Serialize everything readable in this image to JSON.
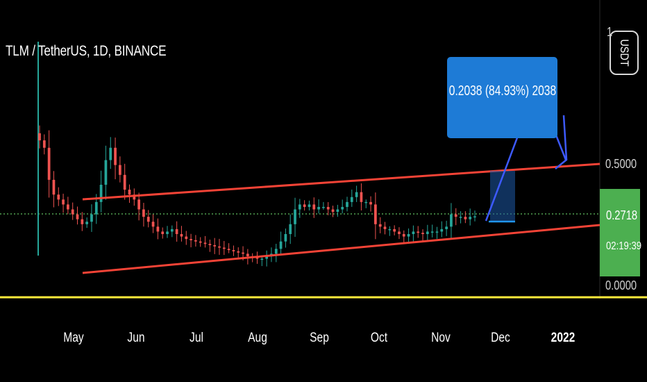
{
  "chart": {
    "symbol": "TLM / TetherUS, 1D, BINANCE",
    "unit_badge": "USDT",
    "y_axis_ticks": [
      "0.5000",
      "0.0000"
    ],
    "y_axis_top_partial": "1",
    "current_price": "0.2718",
    "countdown": "02:19:39",
    "measure_label": "0.2038 (84.93%) 2038",
    "colors": {
      "background": "#000000",
      "up_candle": "#26a69a",
      "down_candle": "#ef5350",
      "channel_lines": "#f44336",
      "drawing": "#2962ff",
      "measure_box": "#1e7bd6",
      "baseline": "#ffeb3b",
      "price_tag": "#4caf50"
    }
  },
  "chart_data": {
    "type": "candlestick",
    "title": "TLM / TetherUS, 1D, BINANCE",
    "x_ticks": [
      "May",
      "Jun",
      "Jul",
      "Aug",
      "Sep",
      "Oct",
      "Nov",
      "Dec",
      "2022"
    ],
    "y_ticks": [
      0.5,
      0.0
    ],
    "ylim": [
      0.0,
      0.75
    ],
    "close_series": [
      0.58,
      0.55,
      0.42,
      0.36,
      0.34,
      0.32,
      0.3,
      0.28,
      0.26,
      0.24,
      0.25,
      0.28,
      0.33,
      0.4,
      0.5,
      0.55,
      0.48,
      0.44,
      0.38,
      0.36,
      0.34,
      0.3,
      0.27,
      0.25,
      0.23,
      0.21,
      0.2,
      0.21,
      0.22,
      0.2,
      0.19,
      0.18,
      0.175,
      0.17,
      0.165,
      0.16,
      0.155,
      0.15,
      0.145,
      0.14,
      0.135,
      0.13,
      0.125,
      0.12,
      0.11,
      0.105,
      0.1,
      0.1,
      0.11,
      0.12,
      0.14,
      0.17,
      0.2,
      0.24,
      0.3,
      0.32,
      0.31,
      0.32,
      0.3,
      0.31,
      0.31,
      0.3,
      0.29,
      0.3,
      0.31,
      0.33,
      0.35,
      0.37,
      0.33,
      0.33,
      0.32,
      0.24,
      0.23,
      0.22,
      0.22,
      0.21,
      0.2,
      0.19,
      0.2,
      0.21,
      0.205,
      0.2,
      0.21,
      0.21,
      0.21,
      0.22,
      0.23,
      0.28,
      0.27,
      0.27,
      0.26,
      0.27,
      0.2718
    ],
    "channel_upper": [
      [
        0,
        0.31
      ],
      [
        1,
        0.5
      ]
    ],
    "channel_lower": [
      [
        0,
        0.04
      ],
      [
        1,
        0.23
      ]
    ],
    "current_price": 0.2718,
    "measure": {
      "change": 0.2038,
      "percent": 84.93,
      "bars": 2038
    }
  }
}
